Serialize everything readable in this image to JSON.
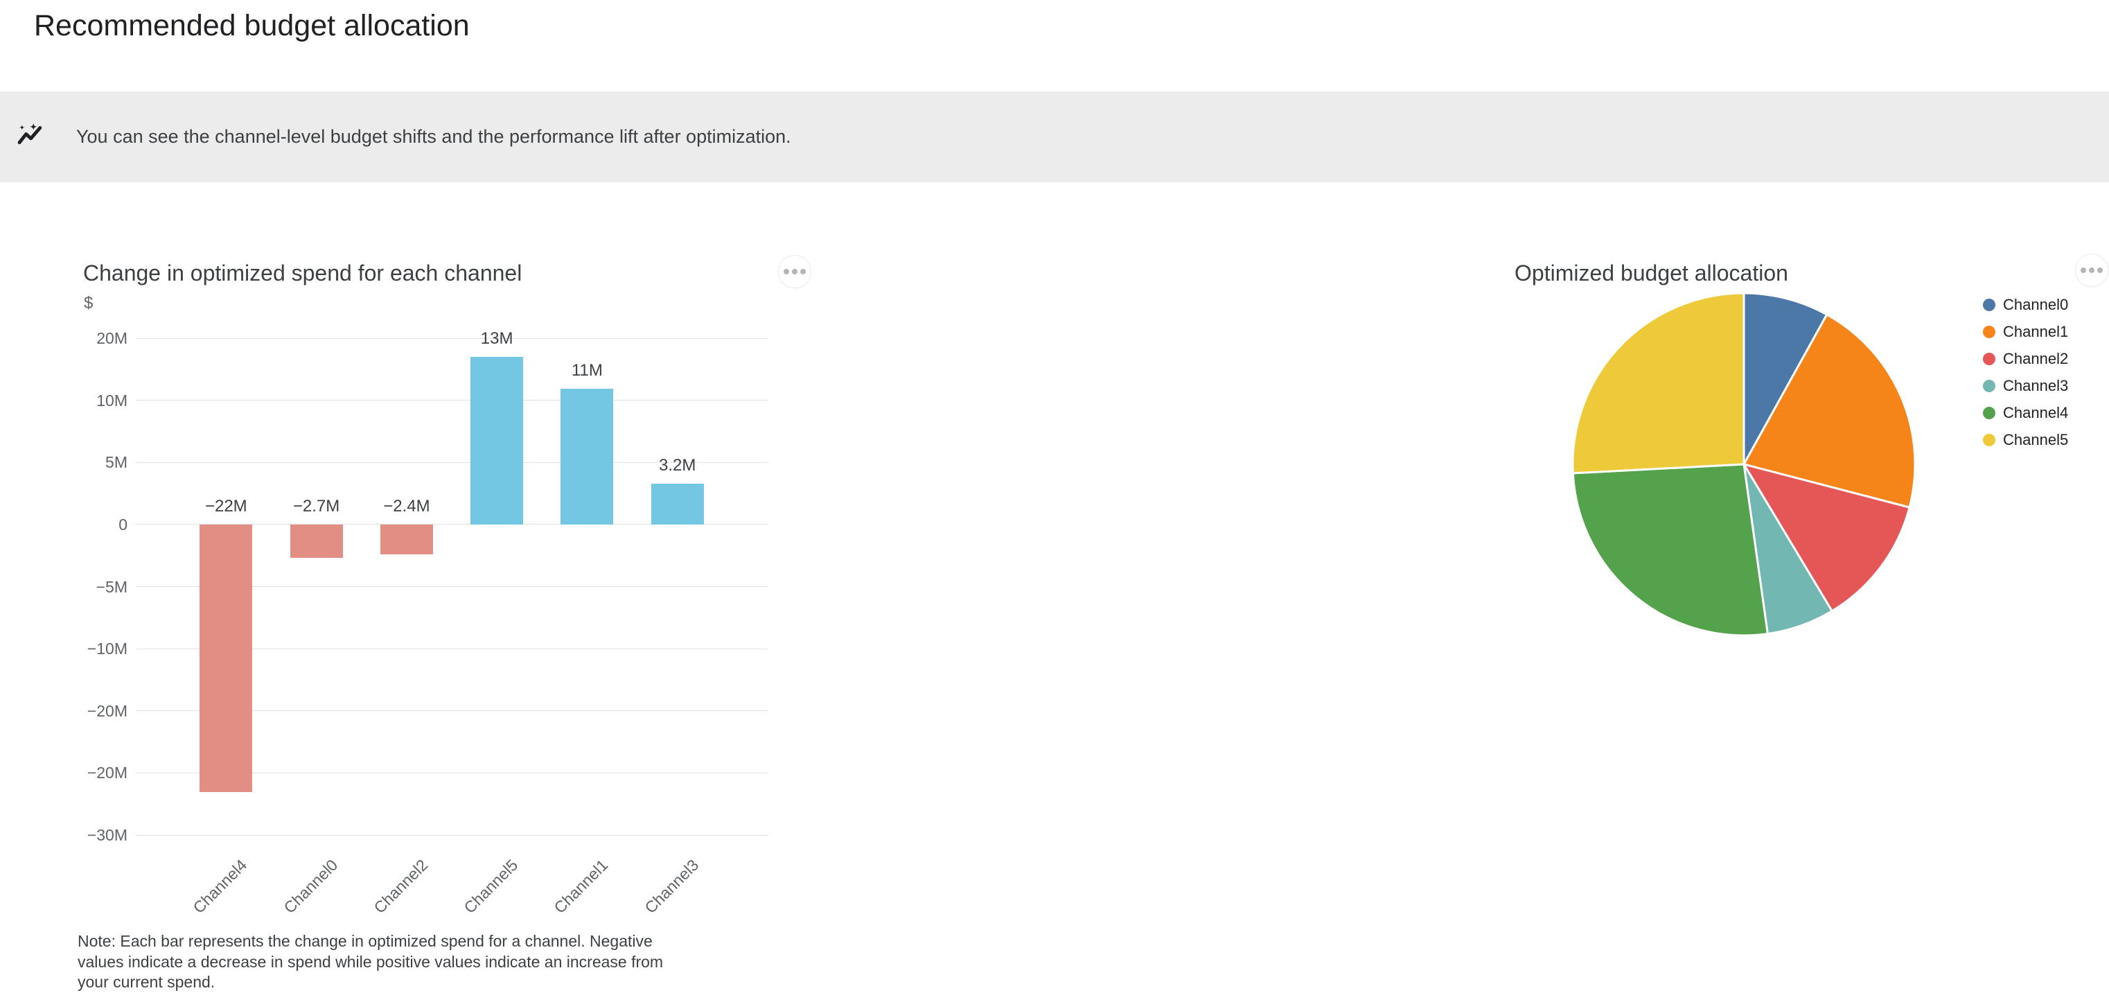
{
  "page": {
    "title": "Recommended budget allocation"
  },
  "banner": {
    "icon": "insights-sparkline-icon",
    "text": "You can see the channel-level budget shifts and the performance lift after optimization.",
    "background": "#ececec"
  },
  "bar_card": {
    "title": "Change in optimized spend for each channel",
    "unit": "$",
    "menu_icon": "more-options-icon",
    "note": "Note: Each bar represents the change in optimized spend for a channel. Negative values indicate a decrease in spend while positive values indicate an increase from your current spend."
  },
  "pie_card": {
    "title": "Optimized budget allocation",
    "menu_icon": "more-options-icon"
  },
  "colors": {
    "bar_negative": "#e28e84",
    "bar_positive": "#74c7e3",
    "grid": "#e0e0e0",
    "axis_text": "#5f6368",
    "text_dark": "#3c4043"
  },
  "chart_data": [
    {
      "type": "bar",
      "title": "Change in optimized spend for each channel",
      "ylabel": "$",
      "grid": true,
      "categories": [
        "Channel4",
        "Channel0",
        "Channel2",
        "Channel5",
        "Channel1",
        "Channel3"
      ],
      "values_millions": [
        -22,
        -2.7,
        -2.4,
        13,
        11,
        3.2
      ],
      "value_labels": [
        "−22M",
        "−2.7M",
        "−2.4M",
        "13M",
        "11M",
        "3.2M"
      ],
      "y_tick_labels": [
        "20M",
        "10M",
        "5M",
        "0",
        "−5M",
        "−10M",
        "−20M",
        "−20M",
        "−30M"
      ],
      "zero_frac": 0.375,
      "bar_centers_frac": [
        0.1429,
        0.2857,
        0.4286,
        0.5714,
        0.7143,
        0.8571
      ],
      "bar_extents_frac": [
        [
          0.375,
          0.9135
        ],
        [
          0.375,
          0.4421
        ],
        [
          0.375,
          0.4352
        ],
        [
          0.0377,
          0.375
        ],
        [
          0.1018,
          0.375
        ],
        [
          0.2929,
          0.375
        ]
      ]
    },
    {
      "type": "pie",
      "title": "Optimized budget allocation",
      "legend_position": "right",
      "start_angle_deg": 0,
      "direction": "clockwise",
      "slices": [
        {
          "label": "Channel0",
          "angle_deg": 29.0,
          "percent_est": 8.1,
          "color": "#4c78a8"
        },
        {
          "label": "Channel1",
          "angle_deg": 75.6,
          "percent_est": 21.0,
          "color": "#f58518"
        },
        {
          "label": "Channel2",
          "angle_deg": 44.4,
          "percent_est": 12.3,
          "color": "#e45756"
        },
        {
          "label": "Channel3",
          "angle_deg": 23.0,
          "percent_est": 6.4,
          "color": "#72b7b2"
        },
        {
          "label": "Channel4",
          "angle_deg": 95.0,
          "percent_est": 26.4,
          "color": "#54a24b"
        },
        {
          "label": "Channel5",
          "angle_deg": 93.0,
          "percent_est": 25.8,
          "color": "#eeca3b"
        }
      ]
    }
  ]
}
